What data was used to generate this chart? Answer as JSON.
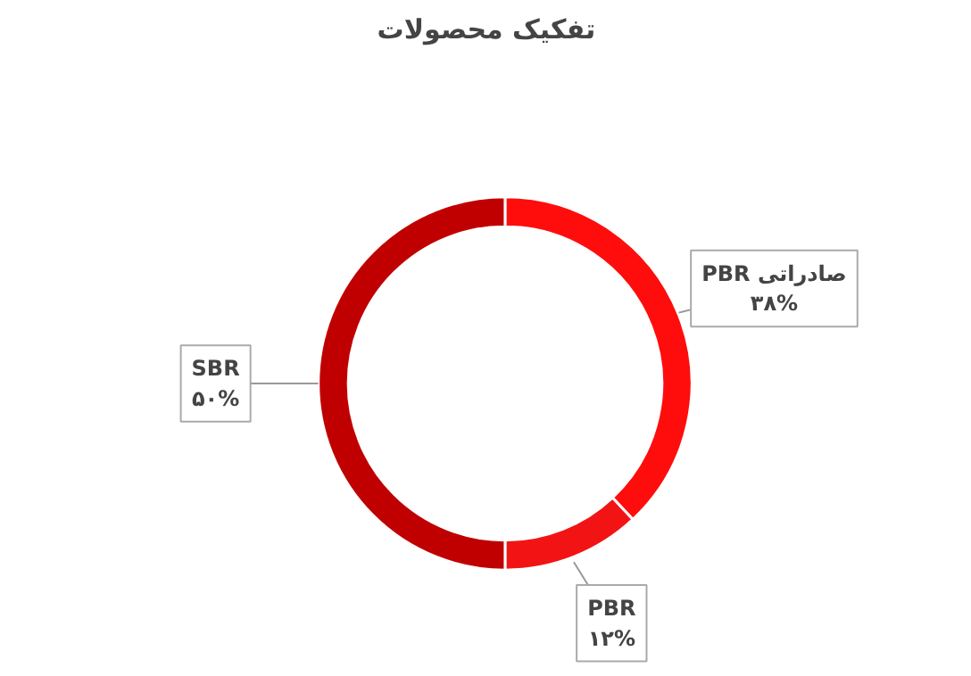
{
  "chart_data": {
    "type": "donut",
    "title": "تفکیک محصولات",
    "categories": [
      "PBR صادراتی",
      "PBR",
      "SBR"
    ],
    "values": [
      38,
      12,
      50
    ],
    "value_labels": [
      "۳۸%",
      "۱۲%",
      "۵۰%"
    ],
    "colors": [
      "#ff0d0d",
      "#f21414",
      "#c00000"
    ]
  }
}
